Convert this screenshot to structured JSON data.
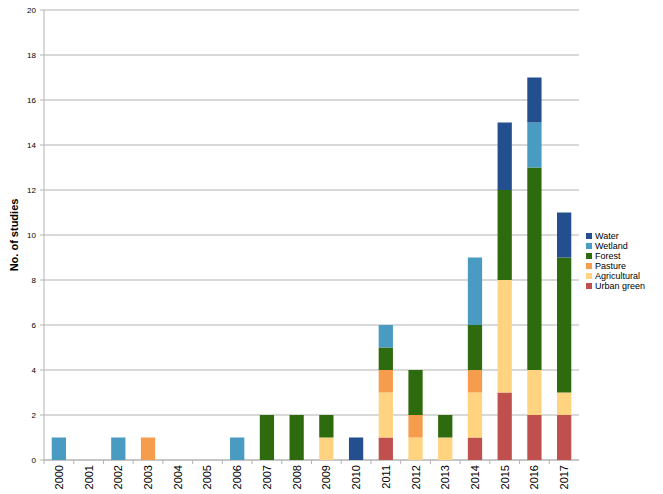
{
  "chart_data": {
    "type": "bar",
    "stacked": true,
    "y_label": "No. of studies",
    "categories": [
      "2000",
      "2001",
      "2002",
      "2003",
      "2004",
      "2005",
      "2006",
      "2007",
      "2008",
      "2009",
      "2010",
      "2011",
      "2012",
      "2013",
      "2014",
      "2015",
      "2016",
      "2017"
    ],
    "series": [
      {
        "name": "Urban green",
        "color": "#c0504d",
        "values": [
          0,
          0,
          0,
          0,
          0,
          0,
          0,
          0,
          0,
          0,
          0,
          1,
          0,
          0,
          1,
          3,
          2,
          2
        ]
      },
      {
        "name": "Agricultural",
        "color": "#ffd37f",
        "values": [
          0,
          0,
          0,
          0,
          0,
          0,
          0,
          0,
          0,
          1,
          0,
          2,
          1,
          1,
          2,
          5,
          2,
          1
        ]
      },
      {
        "name": "Pasture",
        "color": "#f59d4c",
        "values": [
          0,
          0,
          0,
          1,
          0,
          0,
          0,
          0,
          0,
          0,
          0,
          1,
          1,
          0,
          1,
          0,
          0,
          0
        ]
      },
      {
        "name": "Forest",
        "color": "#2e6b0f",
        "values": [
          0,
          0,
          0,
          0,
          0,
          0,
          0,
          2,
          2,
          1,
          0,
          1,
          2,
          1,
          2,
          4,
          9,
          6
        ]
      },
      {
        "name": "Wetland",
        "color": "#4a9bc2",
        "values": [
          1,
          0,
          1,
          0,
          0,
          0,
          1,
          0,
          0,
          0,
          0,
          1,
          0,
          0,
          3,
          0,
          2,
          0
        ]
      },
      {
        "name": "Water",
        "color": "#234f8e",
        "values": [
          0,
          0,
          0,
          0,
          0,
          0,
          0,
          0,
          0,
          0,
          1,
          0,
          0,
          0,
          0,
          3,
          2,
          2
        ]
      }
    ],
    "ylim": [
      0,
      20
    ],
    "yticks": [
      0,
      2,
      4,
      6,
      8,
      10,
      12,
      14,
      16,
      18,
      20
    ],
    "grid": true,
    "legend": "right"
  }
}
